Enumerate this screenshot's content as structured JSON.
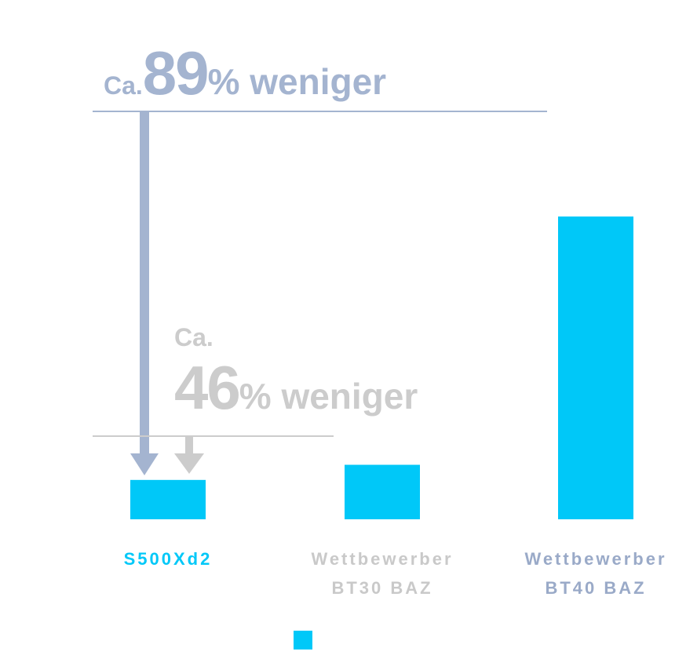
{
  "chart_data": {
    "type": "bar",
    "categories": [
      "S500Xd2",
      "Wettbewerber BT30 BAZ",
      "Wettbewerber BT40 BAZ"
    ],
    "category_colors": [
      "#00c8f8",
      "#c9c9c9",
      "#9aaac8"
    ],
    "values": [
      13,
      18,
      100
    ],
    "color": "#00c8f8",
    "ylim": [
      0,
      100
    ],
    "annotations": [
      {
        "prefix": "Ca.",
        "number": 89,
        "suffix": "% weniger",
        "color": "#a4b4d0"
      },
      {
        "prefix": "Ca.",
        "number": 46,
        "suffix": "% weniger",
        "color": "#cccccc"
      }
    ]
  }
}
